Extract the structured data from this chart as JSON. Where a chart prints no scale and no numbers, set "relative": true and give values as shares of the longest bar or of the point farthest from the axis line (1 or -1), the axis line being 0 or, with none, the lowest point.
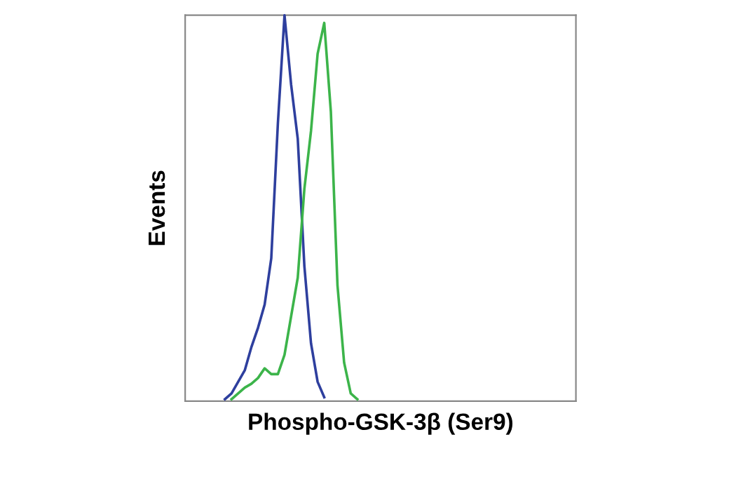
{
  "chart_data": {
    "type": "line",
    "relative": true,
    "xlabel": "Phospho-GSK-3β (Ser9)",
    "ylabel": "Events",
    "tick_labels": false,
    "grid": false,
    "legend": false,
    "marker": "none",
    "line_style": "solid",
    "categories": [
      null,
      null,
      null,
      null,
      null,
      null,
      null,
      null,
      null,
      null,
      null,
      null,
      null,
      null,
      null,
      null,
      null,
      null,
      null,
      null,
      null,
      null,
      null,
      null,
      null,
      null,
      null,
      null,
      null,
      null,
      null,
      null,
      null,
      null,
      null,
      null,
      null,
      null,
      null,
      null,
      null,
      null,
      null,
      null,
      null,
      null,
      null,
      null,
      null,
      null,
      null,
      null,
      null,
      null,
      null,
      null,
      null,
      null,
      null,
      null
    ],
    "series": [
      {
        "color": "#2e3f9e",
        "values": [
          null,
          null,
          null,
          null,
          null,
          null,
          0.005,
          0.02,
          0.05,
          0.08,
          0.14,
          0.19,
          0.25,
          0.37,
          0.72,
          1.0,
          0.82,
          0.68,
          0.35,
          0.15,
          0.05,
          0.01,
          null,
          null,
          null,
          null,
          null,
          null,
          null,
          null,
          null,
          null,
          null,
          null,
          null,
          null,
          null,
          null,
          null,
          null,
          null,
          null,
          null,
          null,
          null,
          null,
          null,
          null,
          null,
          null,
          null,
          null,
          null,
          null,
          null,
          null,
          null,
          null,
          null,
          null
        ]
      },
      {
        "color": "#3cb44a",
        "values": [
          null,
          null,
          null,
          null,
          null,
          null,
          null,
          0.005,
          0.02,
          0.035,
          0.045,
          0.06,
          0.085,
          0.07,
          0.07,
          0.12,
          0.22,
          0.32,
          0.55,
          0.7,
          0.9,
          0.98,
          0.75,
          0.3,
          0.1,
          0.02,
          0.005,
          null,
          null,
          null,
          null,
          null,
          null,
          null,
          null,
          null,
          null,
          null,
          null,
          null,
          null,
          null,
          null,
          null,
          null,
          null,
          null,
          null,
          null,
          null,
          null,
          null,
          null,
          null,
          null,
          null,
          null,
          null,
          null,
          null
        ]
      }
    ]
  }
}
